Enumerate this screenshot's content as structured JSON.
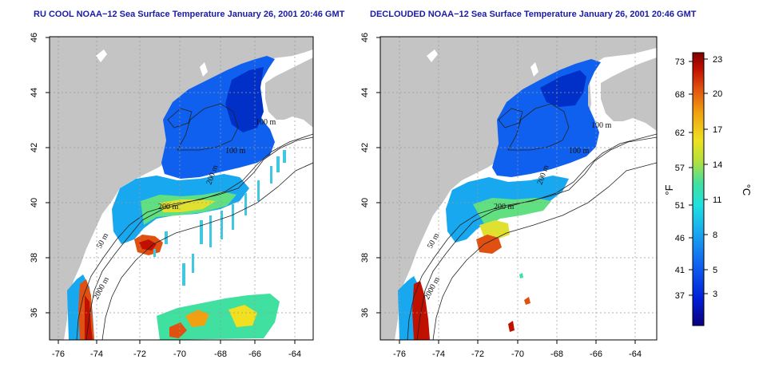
{
  "colors": {
    "land": "#c4c4c4",
    "ocean": "#ffffff",
    "scale": [
      "#0a0080",
      "#0020d8",
      "#1060f0",
      "#18a8f0",
      "#20e0e0",
      "#40e0a0",
      "#b0e040",
      "#f0e020",
      "#f0a010",
      "#e05010",
      "#c01000",
      "#800000"
    ]
  },
  "panels": [
    {
      "id": "rucool",
      "title": "RU COOL NOAA−12 Sea Surface Temperature January 26, 2001 20:46 GMT",
      "x_ticks": [
        "-76",
        "-74",
        "-72",
        "-70",
        "-68",
        "-66",
        "-64"
      ],
      "y_ticks": [
        "46",
        "44",
        "42",
        "40",
        "38",
        "36"
      ],
      "contour_labels": [
        "100 m",
        "200 m",
        "50 m",
        "2000 m",
        "100 m",
        "200 m"
      ]
    },
    {
      "id": "declouded",
      "title": "DECLOUDED NOAA−12 Sea Surface Temperature January 26, 2001 20:46 GMT",
      "x_ticks": [
        "-76",
        "-74",
        "-72",
        "-70",
        "-68",
        "-66",
        "-64"
      ],
      "y_ticks": [
        "46",
        "44",
        "42",
        "40",
        "38",
        "36"
      ],
      "contour_labels": [
        "100 m",
        "100 m",
        "200 m",
        "50 m",
        "2000 m",
        "200 m"
      ]
    }
  ],
  "colorbar": {
    "fahrenheit_ticks": [
      "73",
      "68",
      "62",
      "57",
      "51",
      "46",
      "41",
      "37"
    ],
    "celsius_ticks": [
      "23",
      "20",
      "17",
      "14",
      "11",
      "8",
      "5",
      "3"
    ],
    "fahrenheit_label": "°F",
    "celsius_label": "°C"
  }
}
